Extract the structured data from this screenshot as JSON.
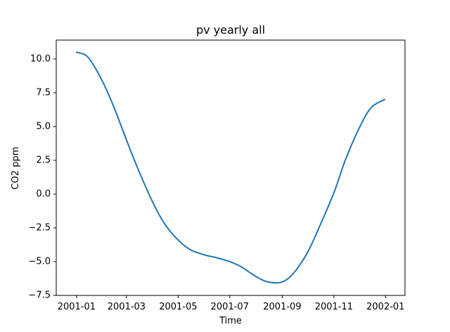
{
  "chart_data": {
    "type": "line",
    "title": "pv yearly all",
    "xlabel": "Time",
    "ylabel": "CO2 ppm",
    "x_ticks": [
      "2001-01",
      "2001-03",
      "2001-05",
      "2001-07",
      "2001-09",
      "2001-11",
      "2002-01"
    ],
    "y_ticks": [
      "−7.5",
      "−5.0",
      "−2.5",
      "0.0",
      "2.5",
      "5.0",
      "7.5",
      "10.0"
    ],
    "ylim": [
      -7.5,
      11.4
    ],
    "xlim": [
      "2000-12-08",
      "2002-01-24"
    ],
    "grid": false,
    "series": [
      {
        "color": "#1f77b4",
        "x": [
          "2001-01-01",
          "2001-01-15",
          "2001-02-01",
          "2001-02-15",
          "2001-03-01",
          "2001-03-15",
          "2001-04-01",
          "2001-04-15",
          "2001-05-01",
          "2001-05-15",
          "2001-06-01",
          "2001-06-15",
          "2001-07-01",
          "2001-07-15",
          "2001-08-01",
          "2001-08-15",
          "2001-09-01",
          "2001-09-15",
          "2001-10-01",
          "2001-10-15",
          "2001-11-01",
          "2001-11-15",
          "2001-12-01",
          "2001-12-15",
          "2001-12-31"
        ],
        "y": [
          10.5,
          10.1,
          8.3,
          6.3,
          4.0,
          1.8,
          -0.6,
          -2.2,
          -3.4,
          -4.1,
          -4.5,
          -4.7,
          -5.0,
          -5.4,
          -6.1,
          -6.5,
          -6.5,
          -5.8,
          -4.3,
          -2.4,
          0.1,
          2.6,
          4.9,
          6.4,
          7.0
        ]
      }
    ]
  }
}
